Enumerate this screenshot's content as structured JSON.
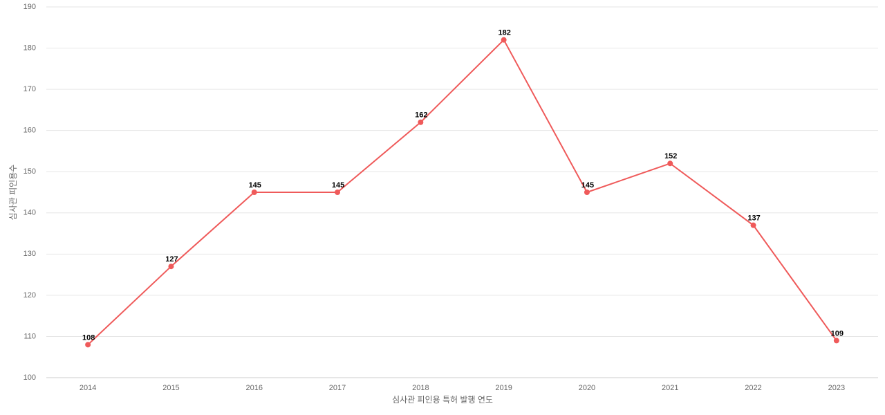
{
  "chart_data": {
    "type": "line",
    "x_label": "심사관 피인용 특허 발행 연도",
    "y_label": "심사관 피인용수",
    "categories": [
      "2014",
      "2015",
      "2016",
      "2017",
      "2018",
      "2019",
      "2020",
      "2021",
      "2022",
      "2023"
    ],
    "values": [
      108,
      127,
      145,
      145,
      162,
      182,
      145,
      152,
      137,
      109
    ],
    "color": "#ef5a5a",
    "ylim": [
      100,
      190
    ],
    "yticks": [
      100,
      110,
      120,
      130,
      140,
      150,
      160,
      170,
      180,
      190
    ],
    "grid": true
  }
}
